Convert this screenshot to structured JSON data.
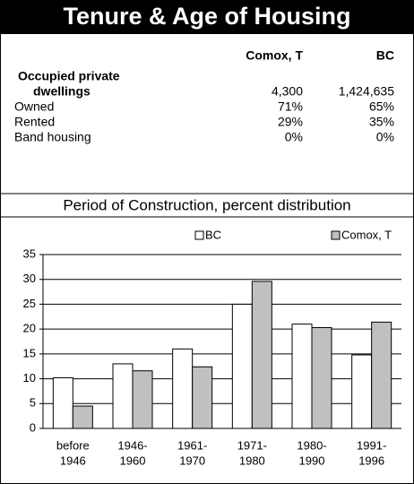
{
  "header": {
    "title": "Tenure & Age of Housing"
  },
  "table": {
    "columns": [
      "Comox, T",
      "BC"
    ],
    "section_label": "Occupied private",
    "rows": [
      {
        "label": "dwellings",
        "values": [
          "4,300",
          "1,424,635"
        ]
      },
      {
        "label": "Owned",
        "values": [
          "71%",
          "65%"
        ]
      },
      {
        "label": "Rented",
        "values": [
          "29%",
          "35%"
        ]
      },
      {
        "label": "Band housing",
        "values": [
          "0%",
          "0%"
        ]
      }
    ]
  },
  "chart_data": {
    "type": "bar",
    "title": "Period of Construction, percent distribution",
    "categories": [
      [
        "before",
        "1946"
      ],
      [
        "1946-",
        "1960"
      ],
      [
        "1961-",
        "1970"
      ],
      [
        "1971-",
        "1980"
      ],
      [
        "1980-",
        "1990"
      ],
      [
        "1991-",
        "1996"
      ]
    ],
    "series": [
      {
        "name": "BC",
        "color": "#ffffff",
        "values": [
          10.2,
          13,
          16,
          25,
          21,
          14.8
        ]
      },
      {
        "name": "Comox, T",
        "color": "#c0c0c0",
        "values": [
          4.5,
          11.6,
          12.4,
          29.6,
          20.3,
          21.4
        ]
      }
    ],
    "ylim": [
      0,
      35
    ],
    "yticks": [
      0,
      5,
      10,
      15,
      20,
      25,
      30,
      35
    ],
    "grid": true,
    "legend": "top"
  }
}
